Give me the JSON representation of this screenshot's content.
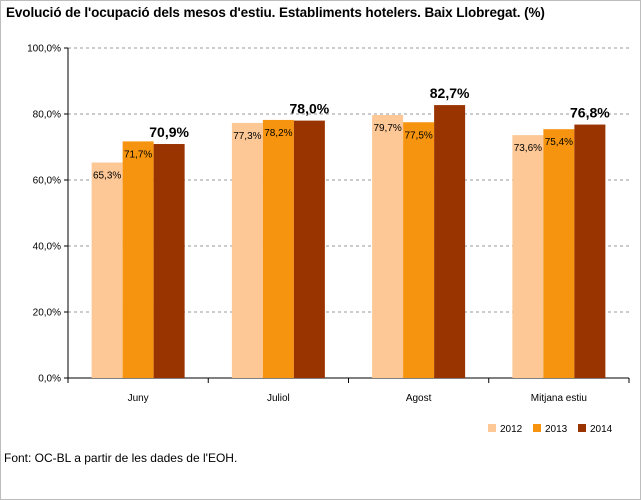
{
  "title": "Evolució de l'ocupació dels mesos d'estiu. Establiments hotelers. Baix Llobregat. (%)",
  "source": "Font: OC-BL  a partir de les dades de l'EOH.",
  "chart_data": {
    "type": "bar",
    "categories": [
      "Juny",
      "Juliol",
      "Agost",
      "Mitjana estiu"
    ],
    "series": [
      {
        "name": "2012",
        "color": "#fdc896",
        "values": [
          65.3,
          77.3,
          79.7,
          73.6
        ],
        "labels": [
          "65,3%",
          "77,3%",
          "79,7%",
          "73,6%"
        ]
      },
      {
        "name": "2013",
        "color": "#f7940f",
        "values": [
          71.7,
          78.2,
          77.5,
          75.4
        ],
        "labels": [
          "71,7%",
          "78,2%",
          "77,5%",
          "75,4%"
        ]
      },
      {
        "name": "2014",
        "color": "#993300",
        "values": [
          70.9,
          78.0,
          82.7,
          76.8
        ],
        "labels": [
          "70,9%",
          "78,0%",
          "82,7%",
          "76,8%"
        ]
      }
    ],
    "yticks": [
      0,
      20,
      40,
      60,
      80,
      100
    ],
    "ytick_labels": [
      "0,0%",
      "20,0%",
      "40,0%",
      "60,0%",
      "80,0%",
      "100,0%"
    ],
    "ylim": [
      0,
      100
    ],
    "grid": true,
    "legend": "bottom-right"
  }
}
